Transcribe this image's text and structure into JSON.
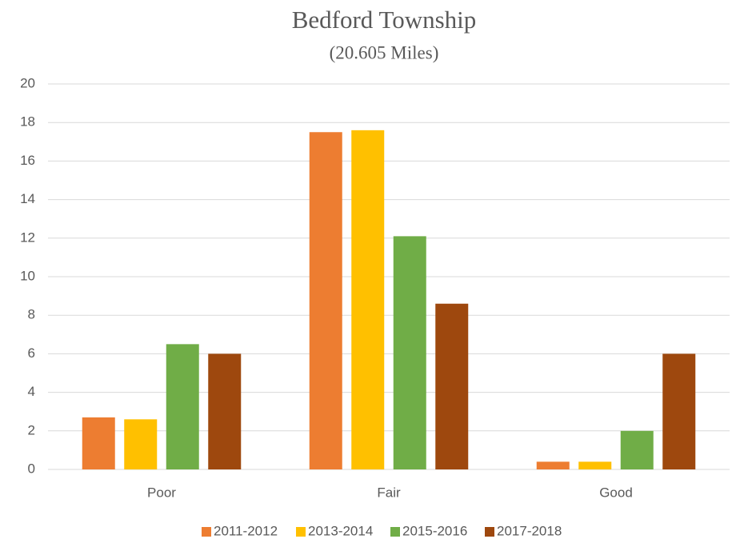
{
  "chart_data": {
    "type": "bar",
    "title": "Bedford Township",
    "subtitle": "(20.605 Miles)",
    "categories": [
      "Poor",
      "Fair",
      "Good"
    ],
    "series": [
      {
        "name": "2011-2012",
        "color": "#ED7D31",
        "values": [
          2.7,
          17.5,
          0.4
        ]
      },
      {
        "name": "2013-2014",
        "color": "#FFC000",
        "values": [
          2.6,
          17.6,
          0.4
        ]
      },
      {
        "name": "2015-2016",
        "color": "#70AD47",
        "values": [
          6.5,
          12.1,
          2.0
        ]
      },
      {
        "name": "2017-2018",
        "color": "#9E480E",
        "values": [
          6.0,
          8.6,
          6.0
        ]
      }
    ],
    "ylim": [
      0,
      20
    ],
    "yticks": [
      0,
      2,
      4,
      6,
      8,
      10,
      12,
      14,
      16,
      18,
      20
    ],
    "grid": true,
    "legend": "bottom"
  }
}
